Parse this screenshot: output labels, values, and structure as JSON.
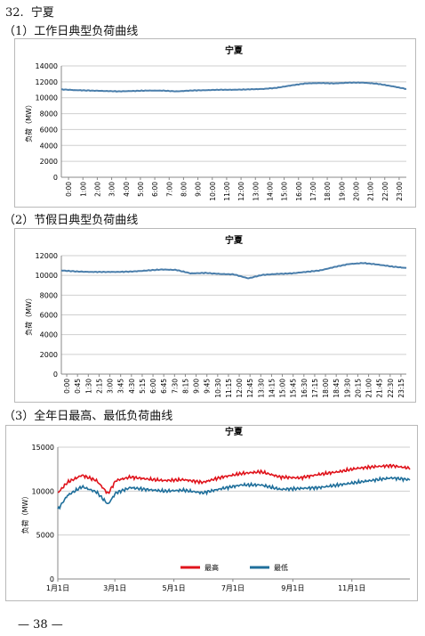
{
  "section": {
    "number": "32.",
    "region": "宁夏"
  },
  "page_number": "— 38 —",
  "colors": {
    "typical": "#4a7eab",
    "max": "#e0141c",
    "min": "#1f6f9b",
    "grid": "#cfcfcf"
  },
  "chart_data": [
    {
      "type": "line",
      "heading": "（1）工作日典型负荷曲线",
      "title": "宁夏",
      "ylabel": "负荷（MW）",
      "ylim": [
        0,
        14000
      ],
      "yticks": [
        0,
        2000,
        4000,
        6000,
        8000,
        10000,
        12000,
        14000
      ],
      "xticks": [
        "0:00",
        "1:00",
        "2:00",
        "3:00",
        "4:00",
        "5:00",
        "6:00",
        "7:00",
        "8:00",
        "9:00",
        "10:00",
        "11:00",
        "12:00",
        "13:00",
        "14:00",
        "15:00",
        "16:00",
        "17:00",
        "18:00",
        "19:00",
        "20:00",
        "21:00",
        "22:00",
        "23:00"
      ],
      "grid": true,
      "series": [
        {
          "values_hourly": [
            11050,
            10950,
            10900,
            10850,
            10800,
            10850,
            10900,
            10900,
            10800,
            10900,
            10950,
            11000,
            11000,
            11050,
            11100,
            11250,
            11550,
            11800,
            11850,
            11800,
            11900,
            11900,
            11750,
            11450,
            11100
          ]
        }
      ]
    },
    {
      "type": "line",
      "heading": "（2）节假日典型负荷曲线",
      "title": "宁夏",
      "ylabel": "负荷（MW）",
      "ylim": [
        0,
        12000
      ],
      "yticks": [
        0,
        2000,
        4000,
        6000,
        8000,
        10000,
        12000
      ],
      "xticks": [
        "0:00",
        "0:45",
        "1:30",
        "2:15",
        "3:00",
        "3:45",
        "4:30",
        "5:15",
        "6:00",
        "6:45",
        "7:30",
        "8:15",
        "9:00",
        "9:45",
        "10:30",
        "11:15",
        "12:00",
        "12:45",
        "13:30",
        "14:15",
        "15:00",
        "15:45",
        "16:30",
        "17:15",
        "18:00",
        "18:45",
        "19:30",
        "20:15",
        "21:00",
        "21:45",
        "22:30",
        "23:15"
      ],
      "grid": true,
      "series": [
        {
          "values_hourly": [
            10500,
            10400,
            10350,
            10350,
            10350,
            10400,
            10500,
            10600,
            10550,
            10200,
            10250,
            10150,
            10100,
            9700,
            10050,
            10150,
            10200,
            10350,
            10500,
            10850,
            11150,
            11250,
            11100,
            10900,
            10750
          ]
        }
      ]
    },
    {
      "type": "line",
      "heading": "（3）全年日最高、最低负荷曲线",
      "title": "宁夏",
      "ylabel": "负荷（MW）",
      "ylim": [
        0,
        15000
      ],
      "yticks": [
        0,
        5000,
        10000,
        15000
      ],
      "xticks": [
        "1月1日",
        "3月1日",
        "5月1日",
        "7月1日",
        "9月1日",
        "11月1日"
      ],
      "xtick_days": [
        0,
        59,
        120,
        181,
        243,
        304
      ],
      "days": 365,
      "grid": true,
      "legend_position": "bottom",
      "series": [
        {
          "name": "最高",
          "key_days": [
            0,
            10,
            25,
            40,
            52,
            60,
            75,
            90,
            110,
            130,
            150,
            170,
            190,
            210,
            230,
            250,
            270,
            290,
            310,
            330,
            345,
            364
          ],
          "key_values": [
            9800,
            11000,
            11800,
            11200,
            9700,
            11200,
            11600,
            11400,
            11200,
            11300,
            11000,
            11600,
            12000,
            12200,
            11600,
            11500,
            11900,
            12200,
            12600,
            12800,
            12900,
            12600
          ]
        },
        {
          "name": "最低",
          "key_days": [
            0,
            10,
            25,
            40,
            52,
            60,
            75,
            90,
            110,
            130,
            150,
            170,
            190,
            210,
            230,
            250,
            270,
            290,
            310,
            330,
            345,
            364
          ],
          "key_values": [
            7900,
            9500,
            10500,
            9900,
            8500,
            9800,
            10400,
            10200,
            10000,
            10100,
            9800,
            10300,
            10700,
            10700,
            10200,
            10300,
            10400,
            10700,
            11000,
            11300,
            11500,
            11300
          ]
        }
      ]
    }
  ]
}
